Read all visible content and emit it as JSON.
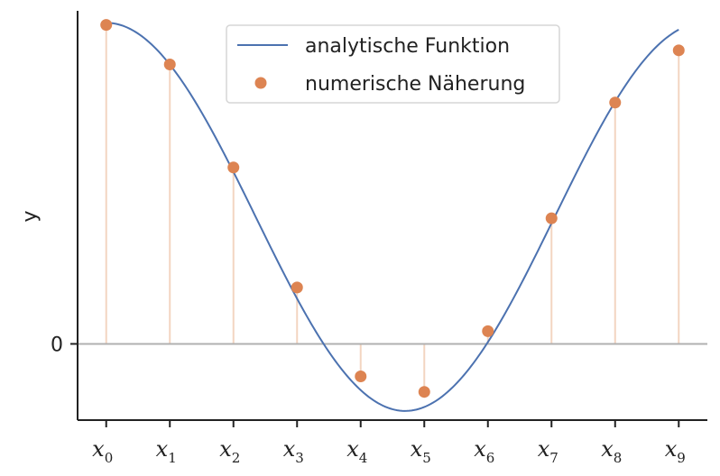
{
  "chart_data": {
    "type": "line",
    "title": "",
    "xlabel": "",
    "ylabel": "y",
    "x_ticks": [
      {
        "base": "x",
        "sub": "0"
      },
      {
        "base": "x",
        "sub": "1"
      },
      {
        "base": "x",
        "sub": "2"
      },
      {
        "base": "x",
        "sub": "3"
      },
      {
        "base": "x",
        "sub": "4"
      },
      {
        "base": "x",
        "sub": "5"
      },
      {
        "base": "x",
        "sub": "6"
      },
      {
        "base": "x",
        "sub": "7"
      },
      {
        "base": "x",
        "sub": "8"
      },
      {
        "base": "x",
        "sub": "9"
      }
    ],
    "y_ticks": [
      "0"
    ],
    "xlim": [
      -0.45,
      9.45
    ],
    "ylim": [
      -0.54,
      2.36
    ],
    "grid": false,
    "legend_position": "top-center",
    "series": [
      {
        "name": "analytische Funktion",
        "kind": "line",
        "color": "#4c72b0",
        "curve": {
          "form": "offset + amplitude * cos(omega * x)",
          "offset": 0.9,
          "amplitude": 1.375,
          "omega": 0.6685
        }
      },
      {
        "name": "numerische Näherung",
        "kind": "scatter",
        "color": "#dd8452",
        "stem_color": "#f3d5c1",
        "x": [
          0,
          1,
          2,
          3,
          4,
          5,
          6,
          7,
          8,
          9
        ],
        "values": [
          2.26,
          1.98,
          1.25,
          0.4,
          -0.23,
          -0.34,
          0.09,
          0.89,
          1.71,
          2.08
        ]
      }
    ],
    "zero_line_color": "#b0b0b0"
  }
}
